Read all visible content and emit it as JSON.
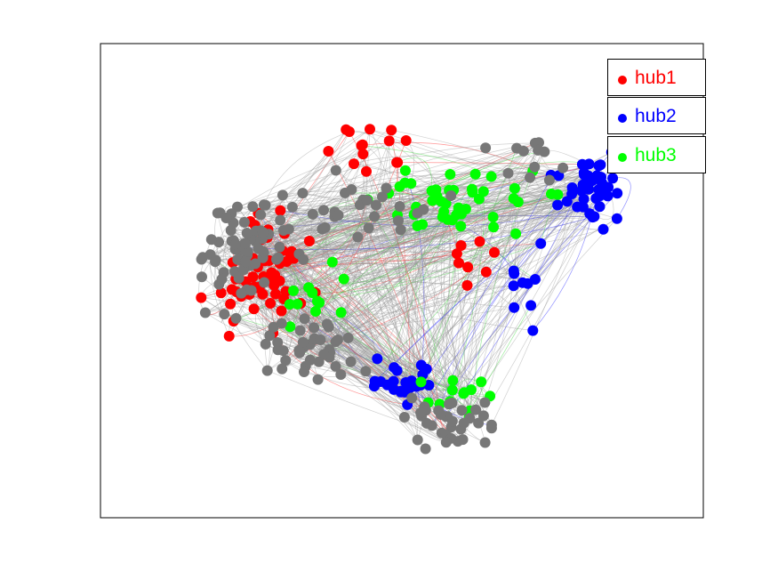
{
  "legend": {
    "items": [
      {
        "label": "hub1",
        "color": "#ff0000"
      },
      {
        "label": "hub2",
        "color": "#0000ff"
      },
      {
        "label": "hub3",
        "color": "#00ff00"
      }
    ]
  },
  "colors": {
    "other_node": "#777777",
    "edge": "#b0b0b0",
    "frame": "#000000",
    "background": "#ffffff"
  },
  "graph": {
    "description_type": "directed network graph with curved arrow edges",
    "groups": [
      "hub1",
      "hub2",
      "hub3",
      "other"
    ]
  }
}
